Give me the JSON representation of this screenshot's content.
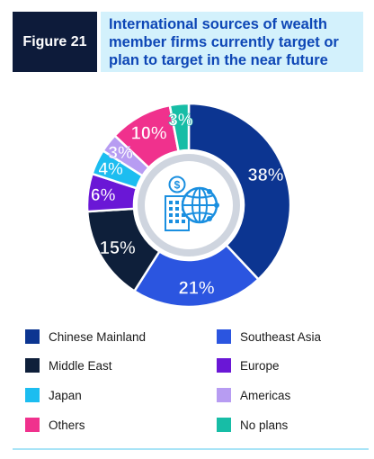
{
  "figure": {
    "label": "Figure 21",
    "title": "International sources of wealth member firms currently target or plan to target in the near future"
  },
  "chart_data": {
    "type": "pie",
    "style": "donut",
    "categories": [
      "Chinese Mainland",
      "Southeast Asia",
      "Middle East",
      "Europe",
      "Japan",
      "Americas",
      "Others",
      "No plans"
    ],
    "values": [
      38,
      21,
      15,
      6,
      4,
      3,
      10,
      3
    ],
    "value_labels": [
      "38%",
      "21%",
      "15%",
      "6%",
      "4%",
      "3%",
      "10%",
      "3%"
    ],
    "colors": [
      "#0c3591",
      "#2b55e0",
      "#0e1f3a",
      "#6a17d6",
      "#1cbdf0",
      "#b79cf2",
      "#f0318d",
      "#17bda6"
    ],
    "legend_placement": "bottom",
    "center_icon": "building-dollar-globe-icon"
  },
  "legend": {
    "items": [
      {
        "label": "Chinese Mainland",
        "color": "#0c3591"
      },
      {
        "label": "Southeast Asia",
        "color": "#2b55e0"
      },
      {
        "label": "Middle East",
        "color": "#0e1f3a"
      },
      {
        "label": "Europe",
        "color": "#6a17d6"
      },
      {
        "label": "Japan",
        "color": "#1cbdf0"
      },
      {
        "label": "Americas",
        "color": "#b79cf2"
      },
      {
        "label": "Others",
        "color": "#f0318d"
      },
      {
        "label": "No plans",
        "color": "#17bda6"
      }
    ]
  }
}
